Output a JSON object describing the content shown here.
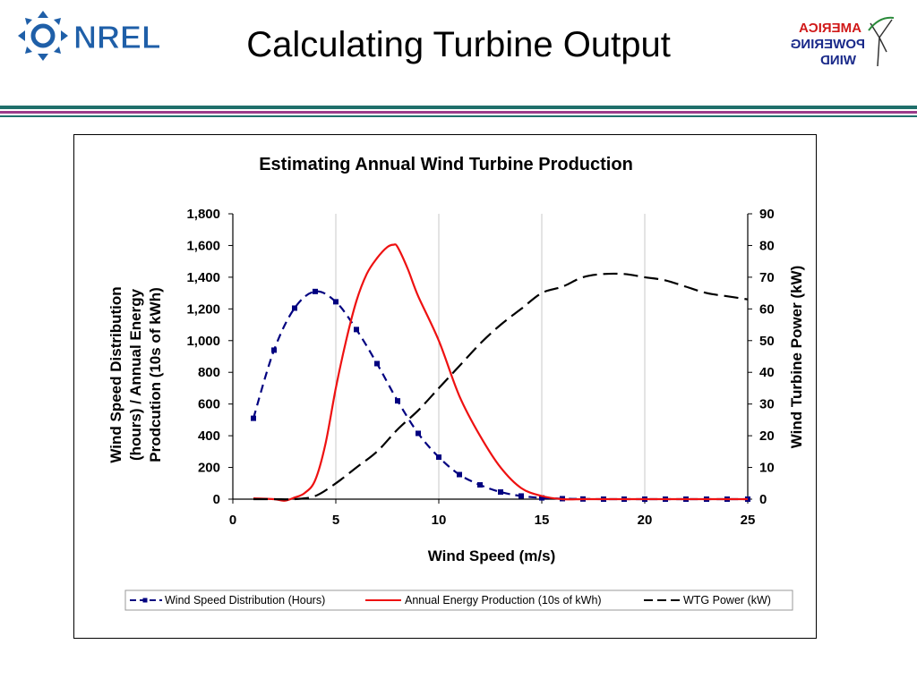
{
  "slide": {
    "title": "Calculating Turbine Output",
    "nrel_logo_text": "NREL",
    "wpa_logo_lines": [
      "WIND",
      "POWERING",
      "AMERICA"
    ]
  },
  "colors": {
    "wind_speed_series": "#000080",
    "energy_series": "#ee1111",
    "power_series": "#000000",
    "nrel_blue": "#1f5fa8",
    "rule_teal": "#1f6f6b",
    "rule_purple": "#9b3b8a"
  },
  "chart_data": {
    "type": "line",
    "title": "Estimating Annual Wind Turbine Production",
    "xlabel": "Wind Speed (m/s)",
    "ylabel_left_lines": [
      "Wind Speed Distribution",
      "(hours) / Annual Energy",
      "Prodcution (10s of kWh)"
    ],
    "ylabel_right": "Wind Turbine Power (kW)",
    "xlim": [
      0,
      25
    ],
    "ylim_left": [
      0,
      1800
    ],
    "ylim_right": [
      0,
      90
    ],
    "x_ticks": [
      "0",
      "5",
      "10",
      "15",
      "20",
      "25"
    ],
    "y_left_ticks": [
      "0",
      "200",
      "400",
      "600",
      "800",
      "1,000",
      "1,200",
      "1,400",
      "1,600",
      "1,800"
    ],
    "y_right_ticks": [
      "0",
      "10",
      "20",
      "30",
      "40",
      "50",
      "60",
      "70",
      "80",
      "90"
    ],
    "grid": "vertical-major",
    "legend_position": "bottom",
    "series": [
      {
        "name": "Wind Speed Distribution (Hours)",
        "axis": "left",
        "style": "dashed-square-markers",
        "x": [
          1,
          2,
          3,
          4,
          5,
          6,
          7,
          8,
          9,
          10,
          11,
          12,
          13,
          14,
          15,
          16,
          17,
          18,
          19,
          20,
          21,
          22,
          23,
          24,
          25
        ],
        "values": [
          510,
          940,
          1205,
          1310,
          1245,
          1070,
          855,
          620,
          415,
          265,
          155,
          90,
          45,
          20,
          8,
          3,
          1,
          0,
          0,
          0,
          0,
          0,
          0,
          0,
          0
        ]
      },
      {
        "name": "Annual Energy Production (10s of kWh)",
        "axis": "left",
        "style": "solid",
        "x": [
          1,
          2,
          2.5,
          3,
          3.5,
          4,
          4.5,
          5,
          5.5,
          6,
          6.5,
          7,
          7.5,
          7.8,
          8,
          8.5,
          9,
          10,
          11,
          12,
          13,
          14,
          15,
          16,
          17,
          18,
          19,
          20,
          21,
          22,
          23,
          24,
          25
        ],
        "values": [
          5,
          0,
          -10,
          10,
          40,
          120,
          350,
          700,
          1000,
          1250,
          1420,
          1520,
          1590,
          1605,
          1590,
          1450,
          1280,
          1000,
          650,
          400,
          200,
          70,
          20,
          0,
          0,
          0,
          0,
          0,
          0,
          0,
          0,
          0,
          0
        ]
      },
      {
        "name": "WTG Power (kW)",
        "axis": "right",
        "style": "long-dash",
        "x": [
          1,
          2,
          3,
          4,
          5,
          6,
          7,
          8,
          9,
          10,
          11,
          12,
          13,
          14,
          15,
          16,
          17,
          18,
          19,
          20,
          21,
          22,
          23,
          24,
          25
        ],
        "values": [
          0,
          0,
          0,
          1,
          5,
          10,
          15,
          22,
          28,
          35,
          42,
          49,
          55,
          60,
          65,
          67,
          70,
          71,
          71,
          70,
          69,
          67,
          65,
          64,
          63
        ]
      }
    ]
  }
}
